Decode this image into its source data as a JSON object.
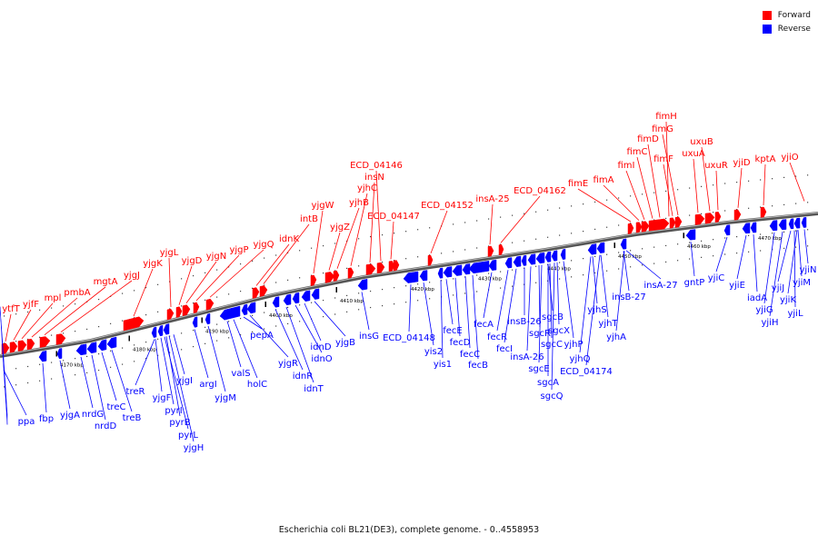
{
  "title": "Escherichia coli BL21(DE3), complete genome. - 0..4558953",
  "legend": [
    {
      "label": "Forward",
      "color": "#ff0000"
    },
    {
      "label": "Reverse",
      "color": "#0000ff"
    }
  ],
  "colors": {
    "forward": "#ff0000",
    "reverse": "#0000ff",
    "backbone": "#888888"
  },
  "ticks": [
    "4170 kbp",
    "4180 kbp",
    "4190 kbp",
    "4400 kbp",
    "4410 kbp",
    "4420 kbp",
    "4430 kbp",
    "4440 kbp",
    "4450 kbp",
    "4460 kbp",
    "4470 kbp"
  ],
  "forward_labels": [
    "ytfT",
    "yjfF",
    "mpl",
    "pmbA",
    "mgtA",
    "yjgJ",
    "yjgK",
    "yjgL",
    "yjgD",
    "yjgN",
    "yjgP",
    "yjgQ",
    "idnK",
    "intB",
    "yjgW",
    "yjgZ",
    "yjhB",
    "yjhC",
    "insN",
    "ECD_04146",
    "ECD_04147",
    "ECD_04152",
    "insA-25",
    "ECD_04162",
    "fimE",
    "fimA",
    "fimI",
    "fimC",
    "fimD",
    "fimF",
    "fimG",
    "fimH",
    "uxuA",
    "uxuB",
    "uxuR",
    "yjiD",
    "kptA",
    "yjiO"
  ],
  "reverse_labels": [
    "ppa",
    "fbp",
    "yjgA",
    "nrdG",
    "nrdD",
    "treC",
    "treB",
    "treR",
    "yjgF",
    "pyrI",
    "pyrB",
    "pyrL",
    "yjgH",
    "yjgI",
    "argI",
    "yjgM",
    "valS",
    "holC",
    "pepA",
    "yjgR",
    "idnR",
    "idnT",
    "idnO",
    "idnD",
    "yjgB",
    "insG",
    "ECD_04148",
    "yis2",
    "yis1",
    "fecE",
    "fecD",
    "fecC",
    "fecB",
    "fecA",
    "fecR",
    "fecI",
    "insB-26",
    "insA-26",
    "sgcR",
    "sgcE",
    "sgcA",
    "sgcQ",
    "sgcC",
    "sgcX",
    "sgcB",
    "yjhP",
    "yjhQ",
    "ECD_04174",
    "yjhS",
    "yjhT",
    "yjhA",
    "insB-27",
    "insA-27",
    "gntP",
    "yjiC",
    "yjiE",
    "iadA",
    "yjiG",
    "yjiH",
    "yjiJ",
    "yjiK",
    "yjiL",
    "yjiM",
    "yjiN"
  ]
}
